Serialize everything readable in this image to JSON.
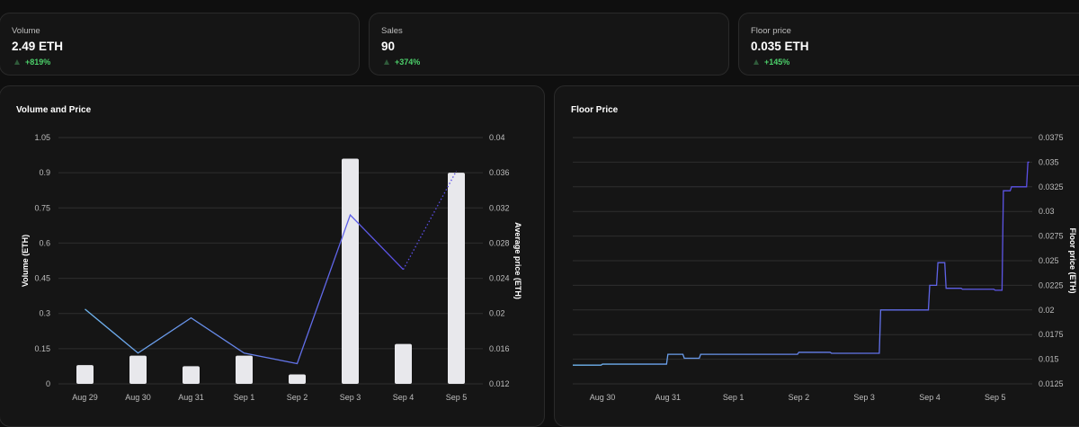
{
  "stats": [
    {
      "label": "Volume",
      "value": "2.49 ETH",
      "change": "+819%"
    },
    {
      "label": "Sales",
      "value": "90",
      "change": "+374%"
    },
    {
      "label": "Floor price",
      "value": "0.035 ETH",
      "change": "+145%"
    }
  ],
  "colors": {
    "positive": "#4cd06a",
    "bar": "#e8e8ec",
    "line_start": "#6fb5ee",
    "line_end": "#5b4ee6",
    "grid": "#2e2e2e",
    "axis_text": "#bdbdbd"
  },
  "volume_panel": {
    "title": "Volume and Price"
  },
  "floor_panel": {
    "title": "Floor Price"
  },
  "chart_data": [
    {
      "type": "bar",
      "categories": [
        "Aug 29",
        "Aug 30",
        "Aug 31",
        "Sep 1",
        "Sep 2",
        "Sep 3",
        "Sep 4",
        "Sep 5"
      ],
      "series": [
        {
          "values": [
            0.08,
            0.12,
            0.075,
            0.12,
            0.04,
            0.96,
            0.17,
            0.9
          ]
        },
        {
          "type": "line",
          "values": [
            0.0205,
            0.0155,
            0.0195,
            0.0155,
            0.0143,
            0.0312,
            0.025,
            0.0362
          ]
        }
      ],
      "ylabel": "Volume (ETH)",
      "y2label": "Average price (ETH)",
      "ylim": [
        0,
        1.05
      ],
      "yticks": [
        "0",
        "0.15",
        "0.3",
        "0.45",
        "0.6",
        "0.75",
        "0.9",
        "1.05"
      ],
      "y2lim": [
        0.012,
        0.04
      ],
      "y2ticks": [
        "0.012",
        "0.016",
        "0.02",
        "0.024",
        "0.028",
        "0.032",
        "0.036",
        "0.04"
      ],
      "grid": true
    },
    {
      "type": "line",
      "x": [
        "Aug 29 18:00",
        "Aug 30 00:00",
        "Aug 31 00:00",
        "Aug 31 06:00",
        "Aug 31 12:00",
        "Sep 1 00:00",
        "Sep 1 12:00",
        "Sep 2 00:00",
        "Sep 2 06:00",
        "Sep 2 12:00",
        "Sep 3 00:00",
        "Sep 3 06:00",
        "Sep 3 12:00",
        "Sep 4 00:00",
        "Sep 4 03:00",
        "Sep 4 06:00",
        "Sep 4 12:00",
        "Sep 5 00:00",
        "Sep 5 03:00",
        "Sep 5 06:00",
        "Sep 5 12:00"
      ],
      "values": [
        0.0144,
        0.0145,
        0.0155,
        0.0151,
        0.0155,
        0.0155,
        0.0155,
        0.0157,
        0.0157,
        0.0156,
        0.0156,
        0.02,
        0.02,
        0.0225,
        0.0248,
        0.0222,
        0.0221,
        0.022,
        0.0321,
        0.0325,
        0.035
      ],
      "categories": [
        "Aug 30",
        "Aug 31",
        "Sep 1",
        "Sep 2",
        "Sep 3",
        "Sep 4",
        "Sep 5"
      ],
      "ylabel": "Floor price (ETH)",
      "ylim": [
        0.0125,
        0.0375
      ],
      "yticks": [
        "0.0125",
        "0.015",
        "0.0175",
        "0.02",
        "0.0225",
        "0.025",
        "0.0275",
        "0.03",
        "0.0325",
        "0.035",
        "0.0375"
      ],
      "grid": true
    }
  ]
}
